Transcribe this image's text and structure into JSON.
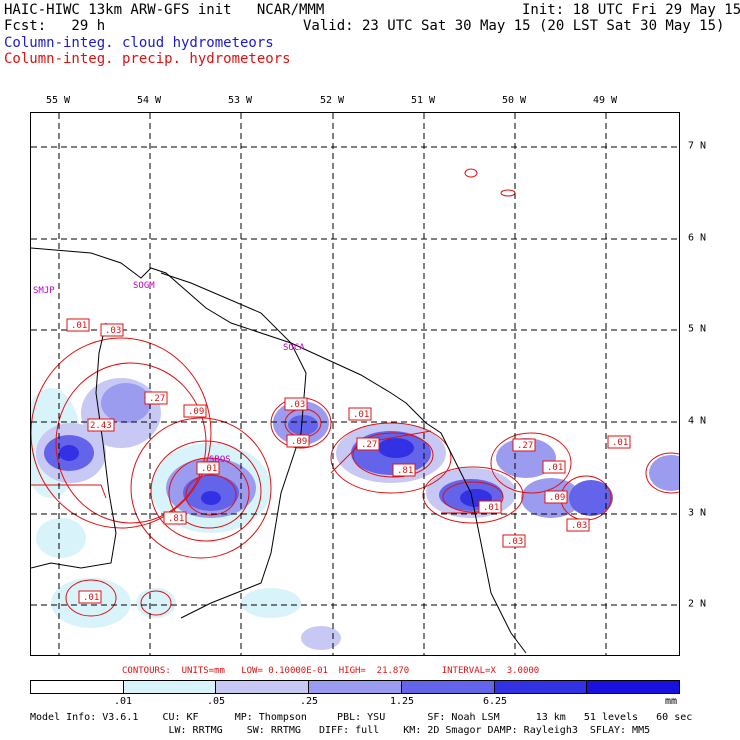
{
  "header": {
    "title": "HAIC-HIWC 13km ARW-GFS init   NCAR/MMM",
    "init": "Init: 18 UTC Fri 29 May 15",
    "fcst": "Fcst:   29 h",
    "valid": "Valid: 23 UTC Sat 30 May 15 (20 LST Sat 30 May 15)",
    "field1": "Column-integ. cloud hydrometeors",
    "field2": "Column-integ. precip. hydrometeors"
  },
  "axes": {
    "lon_labels": [
      "55 W",
      "54 W",
      "53 W",
      "52 W",
      "51 W",
      "50 W",
      "49 W"
    ],
    "lat_labels": [
      "7 N",
      "6 N",
      "5 N",
      "4 N",
      "3 N",
      "2 N"
    ]
  },
  "stations": [
    "SMJP",
    "SOGM",
    "SOCA",
    "SBOS"
  ],
  "contour_labels": [
    ".01",
    ".03",
    ".27",
    "2.43",
    ".09",
    ".01",
    ".81",
    ".03",
    ".09",
    ".01",
    ".27",
    ".81",
    ".27",
    ".01",
    ".01",
    ".09",
    ".03",
    ".03",
    ".01",
    ".01"
  ],
  "contour_info": "CONTOURS:  UNITS=mm   LOW= 0.10000E-01  HIGH=  21.870      INTERVAL=X  3.0000",
  "colorbar": {
    "labels": [
      ".01",
      ".05",
      ".25",
      "1.25",
      "6.25"
    ],
    "unit": "mm",
    "colors": [
      "#ffffff",
      "#d8f4fa",
      "#c8c8f4",
      "#9b9bf0",
      "#6464ea",
      "#3232e4",
      "#1a10e0"
    ]
  },
  "model_info": {
    "line1": "Model Info: V3.6.1    CU: KF      MP: Thompson     PBL: YSU       SF: Noah LSM      13 km   51 levels   60 sec",
    "line2": "                       LW: RRTMG    SW: RRTMG   DIFF: full    KM: 2D Smagor DAMP: Rayleigh3  SFLAY: MM5"
  }
}
